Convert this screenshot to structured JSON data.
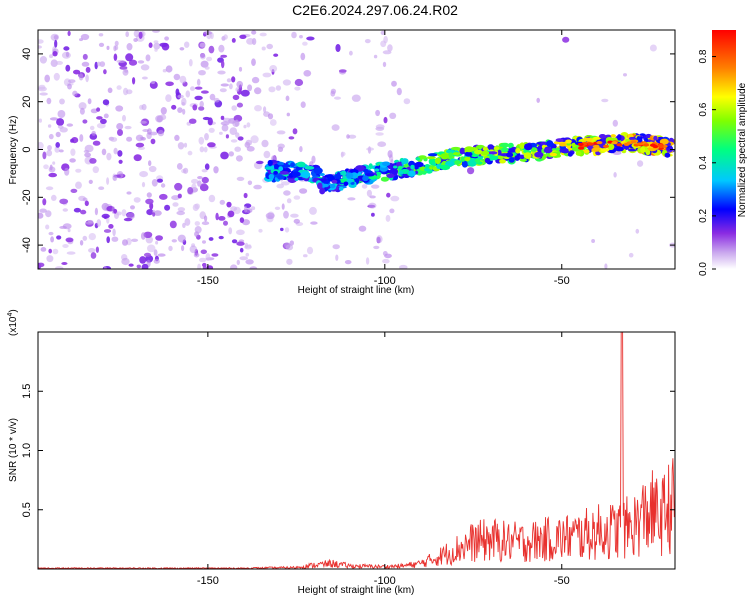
{
  "title": "C2E6.2024.297.06.24.R02",
  "colors": {
    "snr_line": "#e8312e",
    "spectrogram_blob": "#7a22e6"
  },
  "chart_data": [
    {
      "type": "heatmap",
      "xlabel": "Height of straight line (km)",
      "ylabel": "Frequency (Hz)",
      "xlim": [
        -198,
        -18
      ],
      "ylim": [
        -50,
        50
      ],
      "xticks": [
        -150,
        -100,
        -50
      ],
      "yticks": [
        -40,
        -20,
        0,
        20,
        40
      ],
      "colorbar": {
        "label": "Normalized spectral amplitude",
        "range": [
          0.0,
          0.9
        ],
        "ticks": [
          0.0,
          0.2,
          0.4,
          0.6,
          0.8
        ],
        "colormap": "rainbow"
      },
      "ridge": {
        "description_points": [
          [
            -132,
            -9
          ],
          [
            -120,
            -10
          ],
          [
            -117,
            -15
          ],
          [
            -110,
            -12
          ],
          [
            -100,
            -9
          ],
          [
            -90,
            -7
          ],
          [
            -80,
            -3
          ],
          [
            -70,
            -2
          ],
          [
            -60,
            -1
          ],
          [
            -50,
            1
          ],
          [
            -40,
            2
          ],
          [
            -30,
            3
          ],
          [
            -20,
            1
          ]
        ],
        "peak_amplitude_near_x": -20
      }
    },
    {
      "type": "line",
      "xlabel": "Height of straight line (km)",
      "ylabel": "SNR (10 * v/v)",
      "y_multiplier": "(x10",
      "y_multiplier_exp": "4",
      "xlim": [
        -198,
        -18
      ],
      "ylim": [
        0,
        2.0
      ],
      "xticks": [
        -150,
        -100,
        -50
      ],
      "yticks": [
        0.5,
        1.0,
        1.5
      ],
      "series": [
        {
          "x": [
            -198,
            -180,
            -160,
            -140,
            -125,
            -120,
            -115,
            -110,
            -100,
            -95,
            -90,
            -85,
            -80,
            -75,
            -70,
            -65,
            -60,
            -55,
            -50,
            -45,
            -40,
            -35,
            -30,
            -25,
            -22,
            -20,
            -18
          ],
          "y": [
            0.01,
            0.01,
            0.01,
            0.01,
            0.02,
            0.05,
            0.07,
            0.04,
            0.03,
            0.04,
            0.07,
            0.15,
            0.25,
            0.35,
            0.38,
            0.35,
            0.35,
            0.38,
            0.4,
            0.43,
            0.48,
            0.5,
            0.55,
            0.75,
            0.65,
            0.8,
            0.85
          ],
          "peak": {
            "x": -33,
            "y": 2.0
          }
        }
      ]
    }
  ]
}
